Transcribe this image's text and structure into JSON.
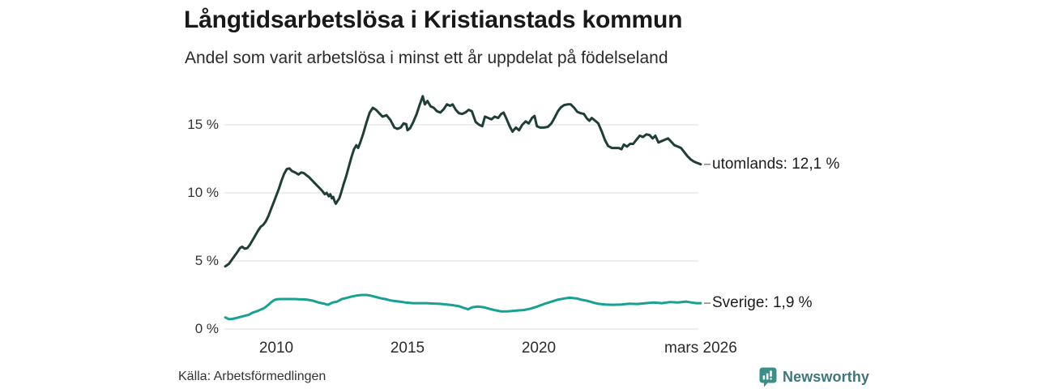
{
  "header": {
    "title": "Långtidsarbetslösa i Kristianstads kommun",
    "subtitle": "Andel som varit arbetslösa i minst ett år uppdelat på födelseland"
  },
  "footer": {
    "source": "Källa: Arbetsförmedlingen",
    "brand": "Newsworthy"
  },
  "colors": {
    "series_utomlands": "#1f3e38",
    "series_sverige": "#18a193",
    "gridline": "#e3e3e3",
    "connector_dash": "#8e8e8e",
    "brand_badge": "#3a8f89",
    "brand_text": "#3e767d",
    "title_text": "#191919",
    "axis_text": "#333333"
  },
  "chart_data": {
    "type": "line",
    "title": "Långtidsarbetslösa i Kristianstads kommun",
    "subtitle": "Andel som varit arbetslösa i minst ett år uppdelat på födelseland",
    "unit": "%",
    "grid": "horizontal",
    "legend_position": "labels-at-line-end",
    "x_range": [
      2008.06,
      2026.17
    ],
    "ylim": [
      0,
      17.5
    ],
    "yticks": [
      {
        "value": 0,
        "label": "0 %"
      },
      {
        "value": 5,
        "label": "5 %"
      },
      {
        "value": 10,
        "label": "10 %"
      },
      {
        "value": 15,
        "label": "15 %"
      }
    ],
    "xticks": [
      {
        "value": 2010,
        "label": "2010"
      },
      {
        "value": 2015,
        "label": "2015"
      },
      {
        "value": 2020,
        "label": "2020"
      },
      {
        "value": 2026.17,
        "label": "mars 2026"
      }
    ],
    "series": [
      {
        "name": "utomlands",
        "end_label": "utomlands: 12,1 %",
        "end_value": "12,1 %",
        "color": "#1f3e38",
        "points": [
          [
            2008.06,
            4.6
          ],
          [
            2008.2,
            4.8
          ],
          [
            2008.35,
            5.2
          ],
          [
            2008.5,
            5.6
          ],
          [
            2008.62,
            5.95
          ],
          [
            2008.7,
            6.05
          ],
          [
            2008.8,
            5.9
          ],
          [
            2008.9,
            5.95
          ],
          [
            2009.0,
            6.2
          ],
          [
            2009.15,
            6.7
          ],
          [
            2009.3,
            7.2
          ],
          [
            2009.4,
            7.5
          ],
          [
            2009.5,
            7.65
          ],
          [
            2009.6,
            7.9
          ],
          [
            2009.7,
            8.3
          ],
          [
            2009.8,
            8.8
          ],
          [
            2009.9,
            9.3
          ],
          [
            2010.0,
            9.8
          ],
          [
            2010.1,
            10.3
          ],
          [
            2010.2,
            10.9
          ],
          [
            2010.3,
            11.4
          ],
          [
            2010.4,
            11.75
          ],
          [
            2010.5,
            11.8
          ],
          [
            2010.6,
            11.6
          ],
          [
            2010.72,
            11.5
          ],
          [
            2010.85,
            11.35
          ],
          [
            2010.95,
            11.5
          ],
          [
            2011.05,
            11.45
          ],
          [
            2011.15,
            11.3
          ],
          [
            2011.25,
            11.15
          ],
          [
            2011.35,
            10.95
          ],
          [
            2011.45,
            10.75
          ],
          [
            2011.55,
            10.55
          ],
          [
            2011.65,
            10.35
          ],
          [
            2011.75,
            10.15
          ],
          [
            2011.85,
            9.9
          ],
          [
            2011.92,
            10.0
          ],
          [
            2012.0,
            9.75
          ],
          [
            2012.06,
            9.9
          ],
          [
            2012.12,
            9.6
          ],
          [
            2012.17,
            9.7
          ],
          [
            2012.22,
            9.4
          ],
          [
            2012.27,
            9.2
          ],
          [
            2012.33,
            9.4
          ],
          [
            2012.4,
            9.6
          ],
          [
            2012.47,
            10.0
          ],
          [
            2012.56,
            10.6
          ],
          [
            2012.66,
            11.2
          ],
          [
            2012.76,
            11.9
          ],
          [
            2012.86,
            12.6
          ],
          [
            2012.96,
            13.2
          ],
          [
            2013.05,
            13.5
          ],
          [
            2013.12,
            13.3
          ],
          [
            2013.2,
            13.7
          ],
          [
            2013.32,
            14.4
          ],
          [
            2013.44,
            15.2
          ],
          [
            2013.56,
            15.9
          ],
          [
            2013.68,
            16.25
          ],
          [
            2013.8,
            16.1
          ],
          [
            2013.9,
            15.9
          ],
          [
            2014.05,
            15.6
          ],
          [
            2014.2,
            15.7
          ],
          [
            2014.35,
            15.35
          ],
          [
            2014.5,
            14.8
          ],
          [
            2014.62,
            14.7
          ],
          [
            2014.74,
            14.8
          ],
          [
            2014.85,
            15.1
          ],
          [
            2014.95,
            15.05
          ],
          [
            2015.0,
            14.6
          ],
          [
            2015.1,
            14.75
          ],
          [
            2015.22,
            15.2
          ],
          [
            2015.35,
            15.8
          ],
          [
            2015.47,
            16.5
          ],
          [
            2015.58,
            17.1
          ],
          [
            2015.66,
            16.5
          ],
          [
            2015.76,
            16.75
          ],
          [
            2015.88,
            16.35
          ],
          [
            2016.0,
            16.25
          ],
          [
            2016.12,
            16.0
          ],
          [
            2016.25,
            15.9
          ],
          [
            2016.38,
            16.15
          ],
          [
            2016.5,
            16.5
          ],
          [
            2016.62,
            16.4
          ],
          [
            2016.72,
            16.5
          ],
          [
            2016.84,
            16.1
          ],
          [
            2016.96,
            15.85
          ],
          [
            2017.08,
            15.8
          ],
          [
            2017.2,
            15.9
          ],
          [
            2017.33,
            16.1
          ],
          [
            2017.45,
            16.0
          ],
          [
            2017.6,
            15.2
          ],
          [
            2017.73,
            15.0
          ],
          [
            2017.85,
            14.9
          ],
          [
            2017.95,
            15.6
          ],
          [
            2018.08,
            15.5
          ],
          [
            2018.2,
            15.4
          ],
          [
            2018.32,
            15.6
          ],
          [
            2018.45,
            15.5
          ],
          [
            2018.57,
            15.8
          ],
          [
            2018.66,
            15.9
          ],
          [
            2018.78,
            15.4
          ],
          [
            2018.9,
            14.85
          ],
          [
            2019.0,
            14.5
          ],
          [
            2019.13,
            14.8
          ],
          [
            2019.25,
            14.6
          ],
          [
            2019.37,
            15.0
          ],
          [
            2019.5,
            15.25
          ],
          [
            2019.62,
            15.1
          ],
          [
            2019.74,
            15.5
          ],
          [
            2019.84,
            15.65
          ],
          [
            2019.93,
            14.9
          ],
          [
            2020.05,
            14.8
          ],
          [
            2020.2,
            14.8
          ],
          [
            2020.35,
            14.85
          ],
          [
            2020.48,
            15.1
          ],
          [
            2020.6,
            15.5
          ],
          [
            2020.73,
            16.0
          ],
          [
            2020.85,
            16.3
          ],
          [
            2020.97,
            16.45
          ],
          [
            2021.1,
            16.5
          ],
          [
            2021.22,
            16.5
          ],
          [
            2021.35,
            16.25
          ],
          [
            2021.47,
            15.95
          ],
          [
            2021.6,
            15.85
          ],
          [
            2021.72,
            15.8
          ],
          [
            2021.84,
            15.45
          ],
          [
            2021.93,
            15.3
          ],
          [
            2022.02,
            15.5
          ],
          [
            2022.15,
            15.3
          ],
          [
            2022.27,
            15.1
          ],
          [
            2022.4,
            14.5
          ],
          [
            2022.52,
            13.9
          ],
          [
            2022.64,
            13.45
          ],
          [
            2022.78,
            13.3
          ],
          [
            2022.92,
            13.3
          ],
          [
            2023.05,
            13.3
          ],
          [
            2023.15,
            13.2
          ],
          [
            2023.24,
            13.55
          ],
          [
            2023.36,
            13.4
          ],
          [
            2023.48,
            13.6
          ],
          [
            2023.6,
            13.6
          ],
          [
            2023.72,
            13.9
          ],
          [
            2023.85,
            14.2
          ],
          [
            2023.97,
            14.1
          ],
          [
            2024.1,
            14.3
          ],
          [
            2024.22,
            14.25
          ],
          [
            2024.34,
            14.0
          ],
          [
            2024.44,
            14.2
          ],
          [
            2024.56,
            13.7
          ],
          [
            2024.68,
            13.8
          ],
          [
            2024.8,
            13.9
          ],
          [
            2024.93,
            14.0
          ],
          [
            2025.05,
            13.75
          ],
          [
            2025.17,
            13.5
          ],
          [
            2025.3,
            13.4
          ],
          [
            2025.42,
            13.3
          ],
          [
            2025.54,
            13.0
          ],
          [
            2025.66,
            12.7
          ],
          [
            2025.79,
            12.45
          ],
          [
            2025.91,
            12.3
          ],
          [
            2026.03,
            12.2
          ],
          [
            2026.17,
            12.1
          ]
        ]
      },
      {
        "name": "Sverige",
        "end_label": "Sverige:  1,9 %",
        "end_value": "1,9 %",
        "color": "#18a193",
        "points": [
          [
            2008.06,
            0.85
          ],
          [
            2008.2,
            0.72
          ],
          [
            2008.35,
            0.75
          ],
          [
            2008.5,
            0.82
          ],
          [
            2008.65,
            0.9
          ],
          [
            2008.8,
            0.97
          ],
          [
            2008.95,
            1.05
          ],
          [
            2009.1,
            1.2
          ],
          [
            2009.25,
            1.3
          ],
          [
            2009.4,
            1.42
          ],
          [
            2009.55,
            1.55
          ],
          [
            2009.68,
            1.75
          ],
          [
            2009.8,
            1.95
          ],
          [
            2009.9,
            2.1
          ],
          [
            2010.0,
            2.18
          ],
          [
            2010.15,
            2.2
          ],
          [
            2010.3,
            2.2
          ],
          [
            2010.5,
            2.2
          ],
          [
            2010.7,
            2.2
          ],
          [
            2010.9,
            2.18
          ],
          [
            2011.05,
            2.18
          ],
          [
            2011.2,
            2.15
          ],
          [
            2011.4,
            2.08
          ],
          [
            2011.6,
            1.95
          ],
          [
            2011.8,
            1.87
          ],
          [
            2011.97,
            1.78
          ],
          [
            2012.15,
            1.95
          ],
          [
            2012.3,
            2.0
          ],
          [
            2012.5,
            2.2
          ],
          [
            2012.7,
            2.3
          ],
          [
            2012.9,
            2.4
          ],
          [
            2013.05,
            2.45
          ],
          [
            2013.25,
            2.5
          ],
          [
            2013.45,
            2.5
          ],
          [
            2013.6,
            2.45
          ],
          [
            2013.8,
            2.35
          ],
          [
            2014.0,
            2.25
          ],
          [
            2014.15,
            2.2
          ],
          [
            2014.35,
            2.1
          ],
          [
            2014.55,
            2.05
          ],
          [
            2014.75,
            2.0
          ],
          [
            2014.9,
            1.95
          ],
          [
            2015.2,
            1.9
          ],
          [
            2015.5,
            1.9
          ],
          [
            2015.74,
            1.9
          ],
          [
            2016.0,
            1.87
          ],
          [
            2016.23,
            1.85
          ],
          [
            2016.5,
            1.8
          ],
          [
            2016.76,
            1.74
          ],
          [
            2016.97,
            1.67
          ],
          [
            2017.15,
            1.55
          ],
          [
            2017.31,
            1.45
          ],
          [
            2017.47,
            1.6
          ],
          [
            2017.68,
            1.65
          ],
          [
            2017.9,
            1.6
          ],
          [
            2018.09,
            1.5
          ],
          [
            2018.3,
            1.4
          ],
          [
            2018.55,
            1.3
          ],
          [
            2018.8,
            1.3
          ],
          [
            2019.14,
            1.35
          ],
          [
            2019.45,
            1.4
          ],
          [
            2019.69,
            1.5
          ],
          [
            2019.94,
            1.65
          ],
          [
            2020.22,
            1.85
          ],
          [
            2020.46,
            2.0
          ],
          [
            2020.71,
            2.15
          ],
          [
            2020.99,
            2.25
          ],
          [
            2021.17,
            2.3
          ],
          [
            2021.45,
            2.25
          ],
          [
            2021.63,
            2.15
          ],
          [
            2021.85,
            2.07
          ],
          [
            2022.06,
            1.95
          ],
          [
            2022.25,
            1.86
          ],
          [
            2022.53,
            1.8
          ],
          [
            2022.84,
            1.78
          ],
          [
            2023.15,
            1.8
          ],
          [
            2023.45,
            1.86
          ],
          [
            2023.76,
            1.84
          ],
          [
            2024.07,
            1.9
          ],
          [
            2024.38,
            1.95
          ],
          [
            2024.69,
            1.9
          ],
          [
            2025.0,
            1.98
          ],
          [
            2025.3,
            1.95
          ],
          [
            2025.61,
            2.02
          ],
          [
            2025.8,
            1.95
          ],
          [
            2026.01,
            1.9
          ],
          [
            2026.17,
            1.9
          ]
        ]
      }
    ]
  }
}
